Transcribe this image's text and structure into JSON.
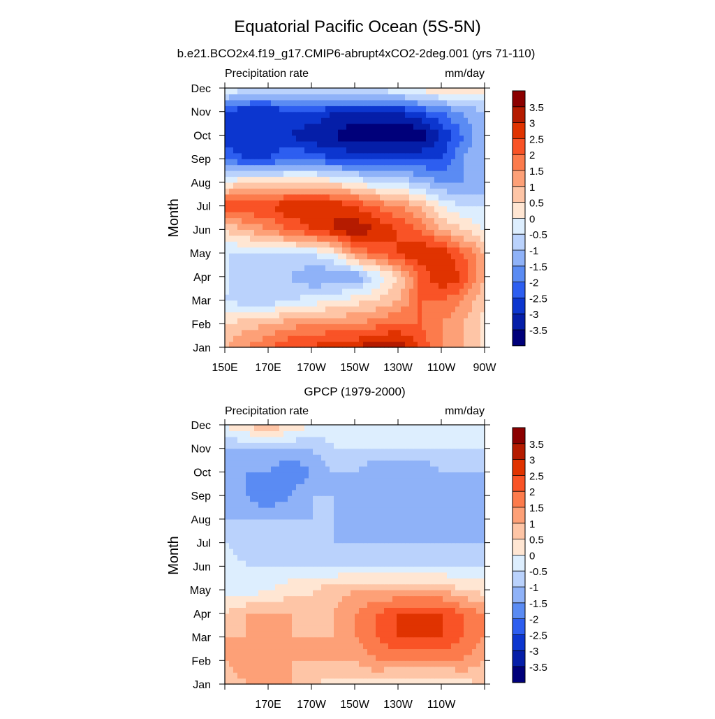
{
  "title": "Equatorial Pacific Ocean (5S-5N)",
  "colorbar": {
    "labels": [
      "3.5",
      "3",
      "2.5",
      "2",
      "1.5",
      "1",
      "0.5",
      "0",
      "-0.5",
      "-1",
      "-1.5",
      "-2",
      "-2.5",
      "-3",
      "-3.5"
    ],
    "colors": [
      "#8b0000",
      "#b51b00",
      "#e03300",
      "#f95326",
      "#fc7b4c",
      "#fda077",
      "#fec5a6",
      "#ffe6d3",
      "#ddeefe",
      "#bad2fc",
      "#8fb2f8",
      "#5a8bf3",
      "#2d5ef0",
      "#0c36cf",
      "#051ea8",
      "#00007a"
    ]
  },
  "chart_data": [
    {
      "type": "heatmap",
      "name": "model",
      "title": "b.e21.BCO2x4.f19_g17.CMIP6-abrupt4xCO2-2deg.001 (yrs 71-110)",
      "left_label": "Precipitation rate",
      "right_label": "mm/day",
      "ylabel": "Month",
      "xlabel": "",
      "x_ticks": [
        "150E",
        "170E",
        "170W",
        "150W",
        "130W",
        "110W",
        "90W"
      ],
      "y_ticks": [
        "Jan",
        "Feb",
        "Mar",
        "Apr",
        "May",
        "Jun",
        "Jul",
        "Aug",
        "Sep",
        "Oct",
        "Nov",
        "Dec"
      ],
      "x_range": [
        "150E",
        "90W"
      ],
      "y_range": [
        "Jan",
        "Dec"
      ],
      "levels": [
        -3.5,
        -3,
        -2.5,
        -2,
        -1.5,
        -1,
        -0.5,
        0,
        0.5,
        1,
        1.5,
        2,
        2.5,
        3,
        3.5
      ],
      "x": [
        "150E",
        "160E",
        "170E",
        "180",
        "170W",
        "160W",
        "150W",
        "140W",
        "130W",
        "120W",
        "110W",
        "100W",
        "90W"
      ],
      "y": [
        "Jan",
        "Feb",
        "Mar",
        "Apr",
        "May",
        "Jun",
        "Jul",
        "Aug",
        "Sep",
        "Oct",
        "Nov",
        "Dec"
      ],
      "z": [
        [
          1.0,
          1.5,
          2.0,
          2.5,
          2.5,
          3.0,
          3.0,
          3.5,
          3.5,
          2.5,
          1.5,
          1.0,
          0.3
        ],
        [
          0.5,
          0.8,
          1.0,
          1.3,
          1.5,
          1.5,
          1.5,
          1.8,
          2.0,
          2.0,
          1.5,
          1.0,
          0.3
        ],
        [
          -0.5,
          -0.8,
          -0.8,
          -0.5,
          -0.3,
          0.0,
          0.3,
          0.5,
          1.0,
          2.0,
          2.0,
          1.5,
          0.5
        ],
        [
          -0.3,
          -1.0,
          -1.0,
          -1.0,
          -1.5,
          -1.5,
          -1.5,
          -0.5,
          0.5,
          2.0,
          3.0,
          2.5,
          1.0
        ],
        [
          -0.5,
          -0.5,
          -0.5,
          -0.5,
          -0.5,
          0.0,
          1.5,
          2.0,
          2.5,
          3.0,
          3.0,
          2.0,
          1.0
        ],
        [
          0.5,
          1.0,
          1.5,
          2.0,
          2.5,
          3.0,
          3.5,
          3.0,
          2.5,
          2.0,
          1.0,
          0.5,
          0.0
        ],
        [
          2.5,
          2.5,
          2.5,
          3.0,
          3.0,
          3.0,
          2.5,
          2.0,
          1.5,
          1.0,
          0.0,
          -0.5,
          -0.5
        ],
        [
          0.0,
          0.5,
          0.5,
          0.5,
          0.5,
          0.3,
          0.0,
          -0.5,
          -0.5,
          -1.0,
          -1.5,
          -1.5,
          -1.5
        ],
        [
          -2.0,
          -2.5,
          -2.5,
          -2.0,
          -2.0,
          -2.5,
          -2.5,
          -2.5,
          -2.5,
          -2.5,
          -2.5,
          -1.5,
          -1.0
        ],
        [
          -3.0,
          -3.0,
          -3.0,
          -3.0,
          -3.5,
          -3.5,
          -4.0,
          -4.0,
          -4.0,
          -4.0,
          -3.0,
          -2.0,
          -1.0
        ],
        [
          -2.5,
          -3.0,
          -3.0,
          -2.5,
          -2.5,
          -3.0,
          -3.0,
          -3.0,
          -3.0,
          -2.5,
          -2.0,
          -1.5,
          -1.0
        ],
        [
          0.0,
          -0.3,
          -0.5,
          -0.5,
          -0.3,
          -0.3,
          -0.3,
          -0.3,
          0.0,
          0.3,
          0.5,
          0.5,
          0.3
        ]
      ]
    },
    {
      "type": "heatmap",
      "name": "obs",
      "title": "GPCP (1979-2000)",
      "left_label": "Precipitation rate",
      "right_label": "mm/day",
      "ylabel": "Month",
      "xlabel": "",
      "x_ticks": [
        "170E",
        "170W",
        "150W",
        "130W",
        "110W"
      ],
      "y_ticks": [
        "Jan",
        "Feb",
        "Mar",
        "Apr",
        "May",
        "Jun",
        "Jul",
        "Aug",
        "Sep",
        "Oct",
        "Nov",
        "Dec"
      ],
      "x_range": [
        "150E",
        "90W"
      ],
      "y_range": [
        "Jan",
        "Dec"
      ],
      "levels": [
        -3.5,
        -3,
        -2.5,
        -2,
        -1.5,
        -1,
        -0.5,
        0,
        0.5,
        1,
        1.5,
        2,
        2.5,
        3,
        3.5
      ],
      "x": [
        "150E",
        "160E",
        "170E",
        "180",
        "170W",
        "160W",
        "150W",
        "140W",
        "130W",
        "120W",
        "110W",
        "100W",
        "90W"
      ],
      "y": [
        "Jan",
        "Feb",
        "Mar",
        "Apr",
        "May",
        "Jun",
        "Jul",
        "Aug",
        "Sep",
        "Oct",
        "Nov",
        "Dec"
      ],
      "z": [
        [
          0.5,
          1.0,
          1.5,
          1.0,
          0.5,
          0.3,
          0.3,
          0.3,
          0.0,
          0.0,
          0.0,
          0.3,
          0.5
        ],
        [
          1.0,
          1.5,
          1.5,
          1.0,
          1.0,
          1.0,
          1.0,
          1.5,
          1.5,
          1.5,
          1.5,
          1.5,
          1.0
        ],
        [
          1.0,
          1.0,
          1.5,
          1.0,
          1.0,
          1.0,
          1.5,
          2.0,
          2.5,
          2.5,
          2.5,
          2.0,
          1.5
        ],
        [
          0.5,
          1.0,
          1.0,
          1.0,
          0.5,
          1.0,
          1.5,
          2.0,
          2.5,
          2.5,
          2.5,
          2.0,
          1.5
        ],
        [
          -0.3,
          -0.3,
          0.0,
          0.3,
          0.5,
          0.8,
          1.0,
          1.0,
          1.0,
          1.0,
          1.0,
          0.5,
          0.3
        ],
        [
          0.0,
          -0.5,
          -0.5,
          -0.5,
          -0.5,
          -0.5,
          -0.5,
          -0.5,
          -0.5,
          -0.5,
          -0.5,
          -0.5,
          -0.5
        ],
        [
          -0.5,
          -1.0,
          -1.0,
          -1.0,
          -1.0,
          -1.0,
          -1.0,
          -1.0,
          -1.0,
          -1.0,
          -1.0,
          -1.0,
          -1.0
        ],
        [
          -1.0,
          -1.0,
          -1.0,
          -1.0,
          -1.0,
          -1.0,
          -1.5,
          -1.5,
          -1.5,
          -1.5,
          -1.0,
          -1.5,
          -1.0
        ],
        [
          -1.5,
          -1.5,
          -2.0,
          -1.5,
          -1.0,
          -1.0,
          -1.5,
          -1.5,
          -1.5,
          -1.5,
          -1.0,
          -1.5,
          -1.0
        ],
        [
          -1.5,
          -1.5,
          -1.5,
          -2.0,
          -1.5,
          -1.0,
          -1.0,
          -1.5,
          -1.5,
          -1.5,
          -1.0,
          -1.0,
          -1.0
        ],
        [
          -1.0,
          -1.0,
          -1.0,
          -1.0,
          -1.0,
          -0.5,
          -0.5,
          -0.5,
          -0.5,
          -0.5,
          -0.5,
          -0.5,
          -0.5
        ],
        [
          0.0,
          0.5,
          1.0,
          0.5,
          0.0,
          -0.3,
          -0.3,
          -0.3,
          -0.3,
          -0.3,
          -0.3,
          -0.3,
          -0.3
        ]
      ]
    }
  ]
}
